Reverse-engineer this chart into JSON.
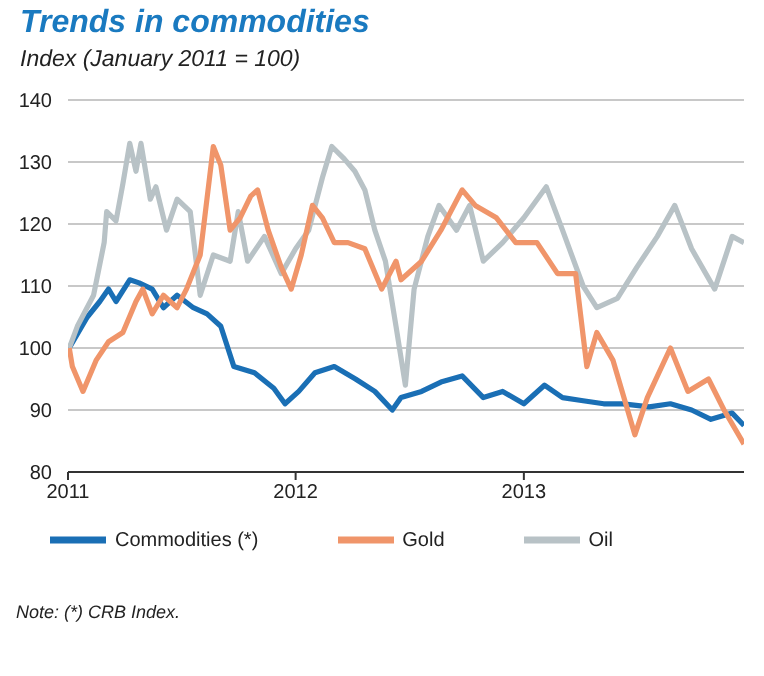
{
  "chart_data": {
    "type": "line",
    "title": "Trends in commodities",
    "subtitle": "Index (January 2011 = 100)",
    "xlim": [
      "2011-01-01",
      "2013-12-20"
    ],
    "xticks": [
      "2011",
      "2012",
      "2013"
    ],
    "ylim": [
      80,
      140
    ],
    "yticks": [
      80,
      90,
      100,
      110,
      120,
      130,
      140
    ],
    "grid": "y",
    "legend": "bottom",
    "line_style": "solid",
    "marker": "none",
    "annotations": [
      "Note: (*) CRB Index."
    ],
    "series": [
      {
        "name": "Commodities (*)",
        "color": "#1a6fb5",
        "x": [
          "2011-01-03",
          "2011-02-01",
          "2011-02-21",
          "2011-03-07",
          "2011-03-19",
          "2011-04-10",
          "2011-04-25",
          "2011-05-16",
          "2011-06-03",
          "2011-06-25",
          "2011-07-21",
          "2011-08-12",
          "2011-09-03",
          "2011-09-24",
          "2011-10-27",
          "2011-11-27",
          "2011-12-15",
          "2012-01-06",
          "2012-02-01",
          "2012-03-03",
          "2012-04-06",
          "2012-05-07",
          "2012-06-04",
          "2012-06-18",
          "2012-07-21",
          "2012-08-21",
          "2012-09-24",
          "2012-10-28",
          "2012-11-28",
          "2013-01-01",
          "2013-02-03",
          "2013-03-04",
          "2013-04-06",
          "2013-05-09",
          "2013-06-09",
          "2013-07-21",
          "2013-08-24",
          "2013-09-27",
          "2013-10-28",
          "2013-12-01",
          "2013-12-20"
        ],
        "values": [
          100,
          105,
          107.5,
          109.5,
          107.5,
          111,
          110.5,
          109.5,
          106.5,
          108.5,
          106.5,
          105.5,
          103.5,
          97,
          96,
          93.5,
          91,
          93,
          96,
          97,
          95,
          93,
          90,
          92,
          93,
          94.5,
          95.5,
          92,
          93,
          91,
          94,
          92,
          91.5,
          91,
          91,
          90.5,
          91,
          90,
          88.5,
          89.5,
          87.5
        ]
      },
      {
        "name": "Oil",
        "color": "#b8c2c6",
        "x": [
          "2011-01-03",
          "2011-01-16",
          "2011-02-11",
          "2011-02-28",
          "2011-03-04",
          "2011-03-19",
          "2011-03-30",
          "2011-04-10",
          "2011-04-20",
          "2011-04-28",
          "2011-05-13",
          "2011-05-22",
          "2011-06-08",
          "2011-06-25",
          "2011-07-16",
          "2011-08-01",
          "2011-08-22",
          "2011-09-18",
          "2011-10-01",
          "2011-10-16",
          "2011-11-12",
          "2011-12-09",
          "2012-01-01",
          "2012-01-22",
          "2012-02-13",
          "2012-02-28",
          "2012-03-19",
          "2012-04-05",
          "2012-04-21",
          "2012-05-07",
          "2012-05-24",
          "2012-06-10",
          "2012-06-25",
          "2012-07-09",
          "2012-07-31",
          "2012-08-18",
          "2012-09-15",
          "2012-10-06",
          "2012-10-28",
          "2012-11-28",
          "2013-01-01",
          "2013-02-06",
          "2013-03-04",
          "2013-04-06",
          "2013-04-28",
          "2013-05-31",
          "2013-07-01",
          "2013-08-03",
          "2013-08-31",
          "2013-09-27",
          "2013-11-03",
          "2013-12-01",
          "2013-12-20"
        ],
        "values": [
          100,
          103.5,
          108.5,
          117,
          122,
          120.5,
          126.5,
          133,
          128.5,
          133,
          124,
          126,
          119,
          124,
          122,
          108.5,
          115,
          114,
          122,
          114,
          118,
          112,
          116,
          119,
          127.5,
          132.5,
          130.5,
          128.5,
          125.5,
          119,
          114,
          103.5,
          94,
          109.5,
          118,
          123,
          119,
          123,
          114,
          117,
          121,
          126,
          119,
          110,
          106.5,
          108,
          113,
          118,
          123,
          116,
          109.5,
          118,
          117
        ]
      },
      {
        "name": "Gold",
        "color": "#f0956a",
        "x": [
          "2011-01-03",
          "2011-01-08",
          "2011-01-25",
          "2011-02-15",
          "2011-03-07",
          "2011-03-30",
          "2011-04-20",
          "2011-05-01",
          "2011-05-16",
          "2011-06-03",
          "2011-06-25",
          "2011-07-10",
          "2011-08-01",
          "2011-08-22",
          "2011-09-03",
          "2011-09-18",
          "2011-10-04",
          "2011-10-21",
          "2011-11-01",
          "2011-11-18",
          "2011-12-09",
          "2011-12-25",
          "2012-01-10",
          "2012-01-28",
          "2012-02-13",
          "2012-03-03",
          "2012-03-25",
          "2012-04-21",
          "2012-05-18",
          "2012-06-10",
          "2012-06-18",
          "2012-07-21",
          "2012-08-21",
          "2012-09-24",
          "2012-10-15",
          "2012-11-18",
          "2012-12-19",
          "2013-01-22",
          "2013-02-24",
          "2013-03-25",
          "2013-04-12",
          "2013-04-28",
          "2013-05-24",
          "2013-06-28",
          "2013-07-18",
          "2013-08-24",
          "2013-09-21",
          "2013-10-24",
          "2013-11-18",
          "2013-12-20"
        ],
        "values": [
          100,
          97,
          93,
          98,
          101,
          102.5,
          107.5,
          109.5,
          105.5,
          108.5,
          106.5,
          109.5,
          115,
          132.5,
          129.5,
          119,
          121,
          124.5,
          125.5,
          119,
          113,
          109.5,
          115,
          123,
          121,
          117,
          117,
          116,
          109.5,
          114,
          111,
          114,
          119,
          125.5,
          123,
          121,
          117,
          117,
          112,
          112,
          97,
          102.5,
          98,
          86,
          92,
          100,
          93,
          95,
          90,
          84.5
        ]
      }
    ]
  }
}
